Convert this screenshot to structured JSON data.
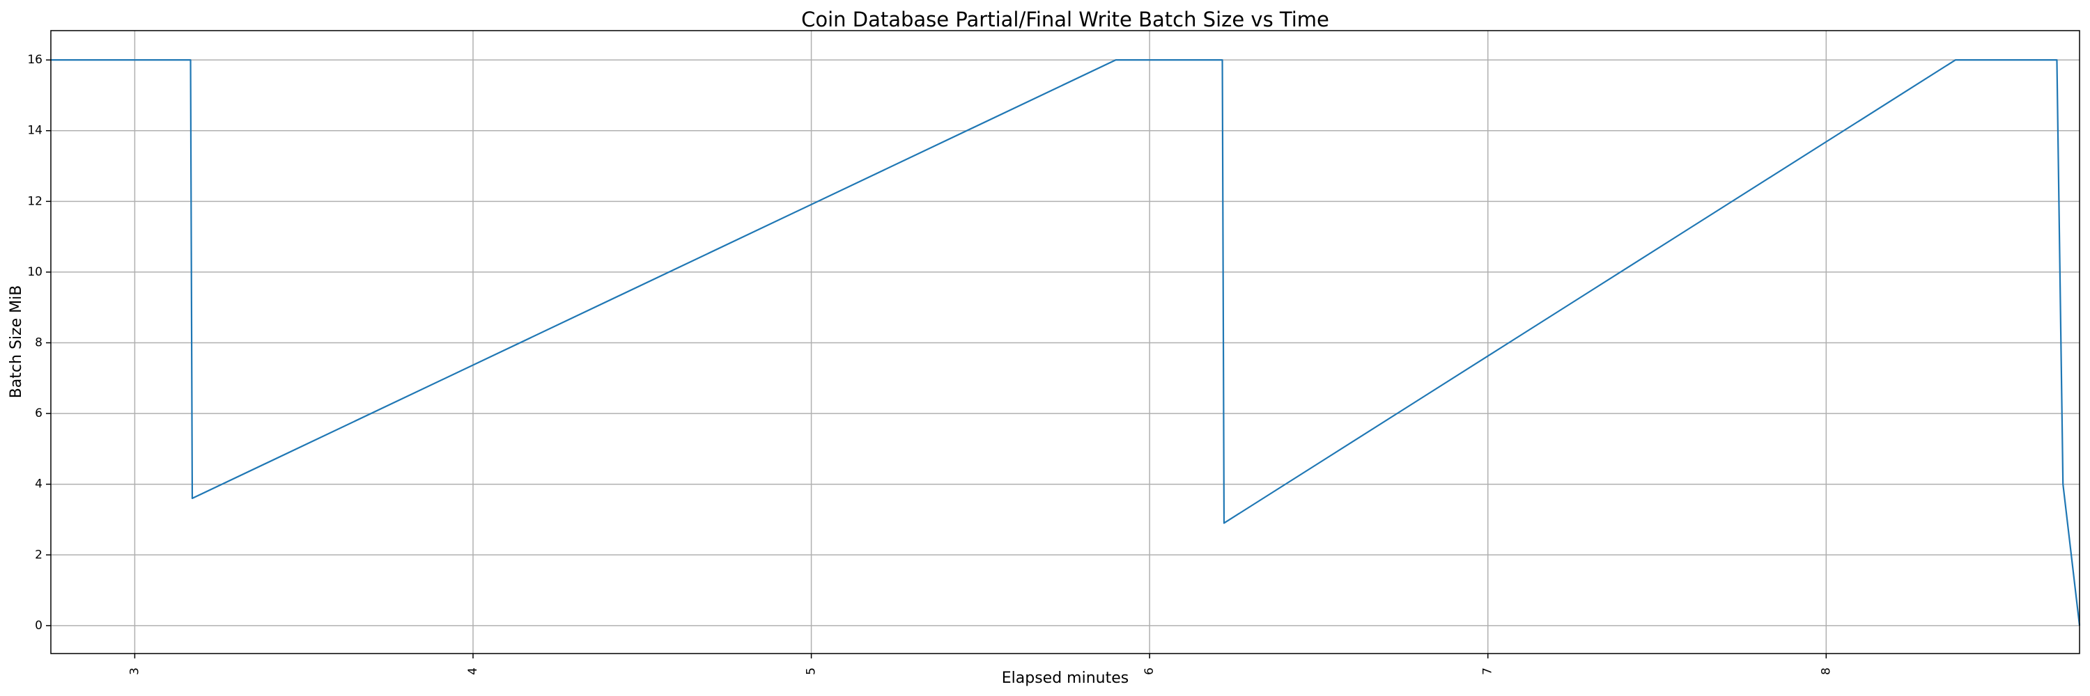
{
  "chart_data": {
    "type": "line",
    "title": "Coin Database Partial/Final Write Batch Size vs Time",
    "x_label": "Elapsed minutes",
    "y_label": "Batch Size MiB",
    "x": [
      2.752,
      3.165,
      3.17,
      5.9,
      6.215,
      6.22,
      8.382,
      8.682,
      8.7,
      8.749
    ],
    "values": [
      16,
      16,
      3.6,
      16,
      16,
      2.9,
      16,
      16,
      4.0,
      0
    ],
    "color": "#1f77b4",
    "xlim": [
      2.752,
      8.749
    ],
    "xticks": [
      3,
      4,
      5,
      6,
      7,
      8
    ],
    "ylim": [
      -0.79,
      16.83
    ],
    "yticks": [
      0,
      2,
      4,
      6,
      8,
      10,
      12,
      14,
      16
    ],
    "grid": true
  }
}
